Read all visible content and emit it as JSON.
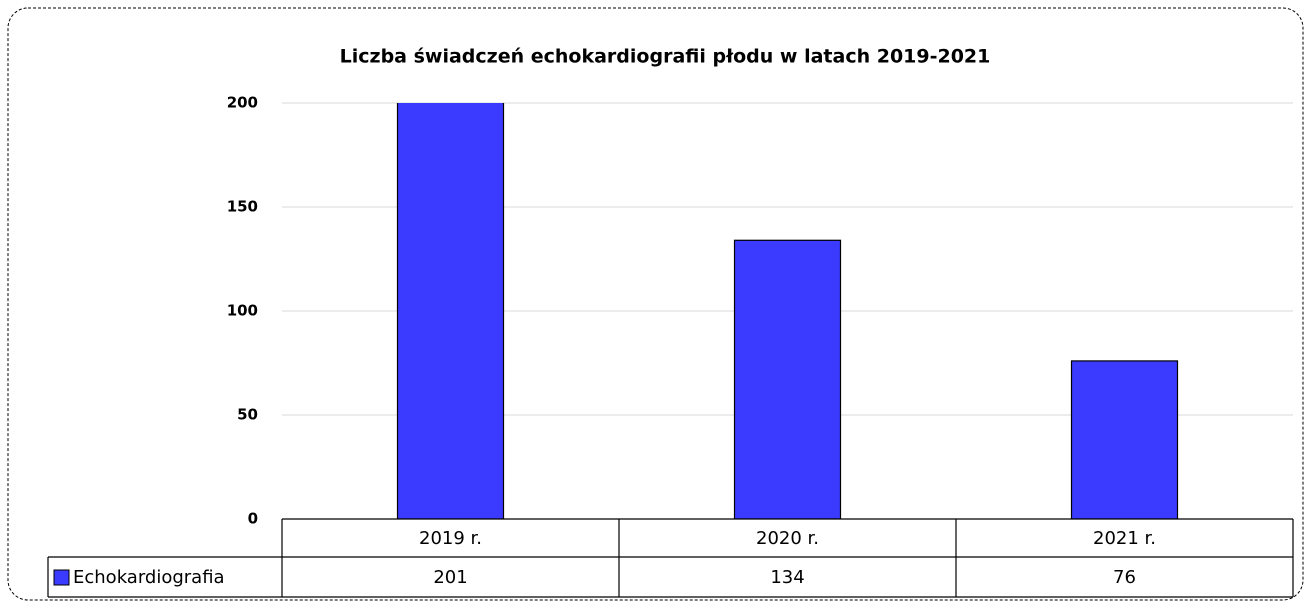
{
  "chart_data": {
    "type": "bar",
    "title": "Liczba świadczeń echokardiografii płodu w latach 2019-2021",
    "categories": [
      "2019 r.",
      "2020 r.",
      "2021 r."
    ],
    "series": [
      {
        "name": "Echokardiografia",
        "color": "#3b3bff",
        "values": [
          201,
          134,
          76
        ]
      }
    ],
    "ylim": [
      0,
      200
    ],
    "yticks": [
      0,
      50,
      100,
      150,
      200
    ],
    "grid": true,
    "data_table": true
  }
}
